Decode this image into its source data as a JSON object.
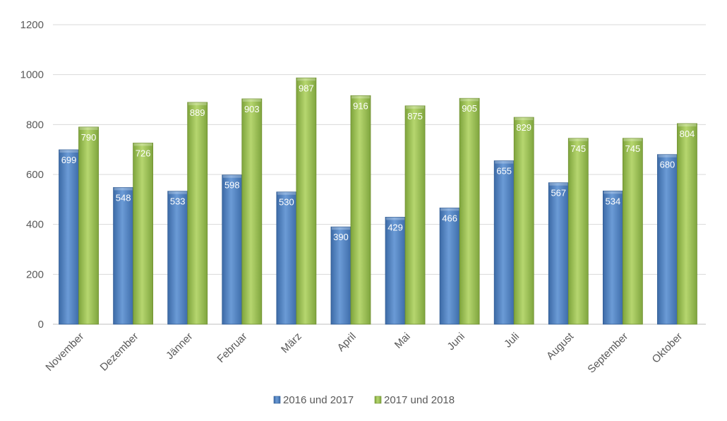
{
  "chart_data": {
    "type": "bar",
    "categories": [
      "November",
      "Dezember",
      "Jänner",
      "Februar",
      "März",
      "April",
      "Mai",
      "Juni",
      "Juli",
      "August",
      "September",
      "Oktober"
    ],
    "series": [
      {
        "name": "2016 und 2017",
        "values": [
          699,
          548,
          533,
          598,
          530,
          390,
          429,
          466,
          655,
          567,
          534,
          680
        ],
        "color": "#4f81bd"
      },
      {
        "name": "2017 und 2018",
        "values": [
          790,
          726,
          889,
          903,
          987,
          916,
          875,
          905,
          829,
          745,
          745,
          804
        ],
        "color": "#9bbb59"
      }
    ],
    "title": "",
    "xlabel": "",
    "ylabel": "",
    "ylim": [
      0,
      1200
    ],
    "yticks": [
      0,
      200,
      400,
      600,
      800,
      1000,
      1200
    ],
    "grid": true,
    "legend": "bottom",
    "data_labels": true
  }
}
